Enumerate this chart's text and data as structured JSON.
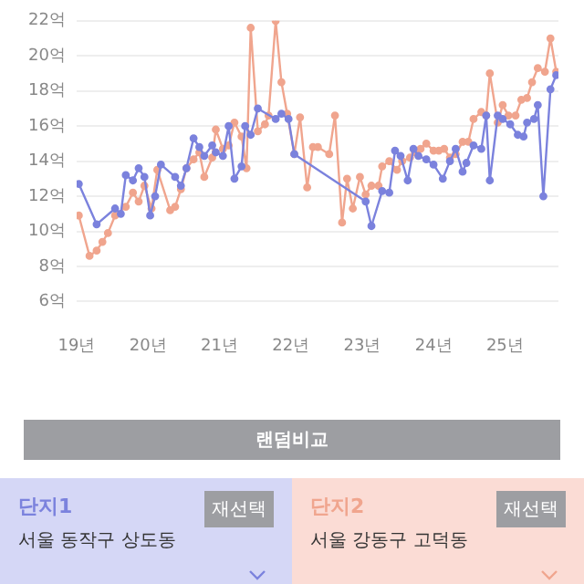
{
  "chart_data": {
    "type": "line",
    "marker": "circle",
    "grid": "y",
    "legend": "bottom",
    "xlim": [
      "2019-01-01",
      "2025-10-01"
    ],
    "ylim": [
      6,
      22
    ],
    "xticks": [
      {
        "value": "2019",
        "label": "19년"
      },
      {
        "value": "2020",
        "label": "20년"
      },
      {
        "value": "2021",
        "label": "21년"
      },
      {
        "value": "2022",
        "label": "22년"
      },
      {
        "value": "2023",
        "label": "23년"
      },
      {
        "value": "2024",
        "label": "24년"
      },
      {
        "value": "2025",
        "label": "25년"
      }
    ],
    "yticks": [
      {
        "value": 6,
        "label": "6억"
      },
      {
        "value": 8,
        "label": "8억"
      },
      {
        "value": 10,
        "label": "10억"
      },
      {
        "value": 12,
        "label": "12억"
      },
      {
        "value": 14,
        "label": "14억"
      },
      {
        "value": 16,
        "label": "16억"
      },
      {
        "value": 18,
        "label": "18억"
      },
      {
        "value": 20,
        "label": "20억"
      },
      {
        "value": 22,
        "label": "22억"
      }
    ],
    "annotations": [
      "랜덤비교",
      "서울 동작구 상도동",
      "재선택",
      "서울 강동구 고덕동",
      "재선택"
    ],
    "series": [
      {
        "name": "단지1",
        "color": "#7b82dd",
        "x": [
          "2019-01-12",
          "2019-04-12",
          "2019-07-15",
          "2019-08-14",
          "2019-09-09",
          "2019-10-15",
          "2019-11-14",
          "2019-12-13",
          "2020-01-12",
          "2020-02-07",
          "2020-03-06",
          "2020-05-18",
          "2020-06-17",
          "2020-07-15",
          "2020-08-21",
          "2020-09-20",
          "2020-10-15",
          "2020-11-25",
          "2020-12-13",
          "2021-01-19",
          "2021-02-18",
          "2021-03-17",
          "2021-04-23",
          "2021-05-11",
          "2021-06-09",
          "2021-07-15",
          "2021-10-15",
          "2021-11-14",
          "2021-12-20",
          "2022-01-19",
          "2023-01-19",
          "2023-02-18",
          "2023-04-12",
          "2023-05-18",
          "2023-06-17",
          "2023-07-15",
          "2023-08-21",
          "2023-09-20",
          "2023-10-15",
          "2023-11-25",
          "2024-01-01",
          "2024-02-18",
          "2024-03-24",
          "2024-04-23",
          "2024-05-28",
          "2024-06-17",
          "2024-07-23",
          "2024-09-02",
          "2024-09-27",
          "2024-10-15",
          "2024-11-25",
          "2024-12-20",
          "2025-01-28",
          "2025-03-06",
          "2025-04-05",
          "2025-04-23",
          "2025-05-28",
          "2025-06-17",
          "2025-07-15",
          "2025-08-21",
          "2025-09-20"
        ],
        "values": [
          12.7,
          10.4,
          11.3,
          11.0,
          13.2,
          12.9,
          13.6,
          13.1,
          10.9,
          12.0,
          13.8,
          13.1,
          12.6,
          13.6,
          15.3,
          14.8,
          14.3,
          14.9,
          14.5,
          14.3,
          16.0,
          13.0,
          13.7,
          16.0,
          15.5,
          17.0,
          16.4,
          16.7,
          16.4,
          14.4,
          11.7,
          10.3,
          12.3,
          12.2,
          14.6,
          14.3,
          12.9,
          14.7,
          14.3,
          14.1,
          13.8,
          13.0,
          14.0,
          14.7,
          13.4,
          13.9,
          14.9,
          14.7,
          16.6,
          12.9,
          16.6,
          16.4,
          16.1,
          15.5,
          15.4,
          16.2,
          16.4,
          17.2,
          12.0,
          18.1,
          18.9
        ]
      },
      {
        "name": "단지2",
        "color": "#f0a58e",
        "x": [
          "2019-01-12",
          "2019-03-06",
          "2019-04-12",
          "2019-05-11",
          "2019-06-09",
          "2019-07-15",
          "2019-09-09",
          "2019-10-15",
          "2019-11-14",
          "2019-12-13",
          "2020-01-19",
          "2020-02-18",
          "2020-04-23",
          "2020-05-18",
          "2020-06-17",
          "2020-07-15",
          "2020-08-21",
          "2020-09-20",
          "2020-10-15",
          "2020-11-25",
          "2020-12-13",
          "2021-01-19",
          "2021-02-18",
          "2021-03-17",
          "2021-04-23",
          "2021-05-18",
          "2021-06-09",
          "2021-07-15",
          "2021-08-21",
          "2021-09-09",
          "2021-10-15",
          "2021-11-14",
          "2021-12-13",
          "2022-01-19",
          "2022-02-18",
          "2022-03-24",
          "2022-04-23",
          "2022-05-18",
          "2022-07-15",
          "2022-08-14",
          "2022-09-20",
          "2022-10-15",
          "2022-11-14",
          "2022-12-20",
          "2023-01-19",
          "2023-02-18",
          "2023-03-24",
          "2023-04-12",
          "2023-05-18",
          "2023-06-27",
          "2023-07-23",
          "2023-09-02",
          "2023-09-27",
          "2023-10-26",
          "2023-11-25",
          "2024-01-01",
          "2024-01-28",
          "2024-02-25",
          "2024-03-24",
          "2024-04-23",
          "2024-05-28",
          "2024-06-27",
          "2024-07-23",
          "2024-09-02",
          "2024-09-27",
          "2024-10-15",
          "2024-11-25",
          "2024-12-20",
          "2025-01-19",
          "2025-02-25",
          "2025-03-24",
          "2025-04-23",
          "2025-05-18",
          "2025-06-17",
          "2025-07-23",
          "2025-08-21",
          "2025-09-20"
        ],
        "values": [
          10.9,
          8.6,
          8.9,
          9.4,
          9.9,
          10.9,
          11.4,
          12.2,
          11.7,
          12.6,
          11.3,
          13.5,
          11.2,
          11.4,
          12.4,
          13.6,
          14.1,
          14.5,
          13.1,
          14.2,
          15.8,
          14.7,
          14.9,
          16.2,
          15.4,
          13.6,
          21.6,
          15.7,
          16.1,
          16.6,
          22.0,
          18.5,
          16.7,
          14.4,
          16.5,
          12.5,
          14.8,
          14.8,
          14.4,
          16.6,
          10.5,
          13.0,
          11.3,
          13.1,
          12.1,
          12.6,
          12.6,
          13.7,
          14.0,
          13.5,
          14.0,
          14.2,
          14.5,
          14.7,
          15.0,
          14.6,
          14.6,
          14.7,
          14.2,
          14.4,
          15.1,
          15.1,
          16.4,
          16.8,
          16.6,
          19.0,
          16.2,
          17.2,
          16.6,
          16.6,
          17.5,
          17.6,
          18.5,
          19.3,
          19.1,
          21.0,
          19.1
        ]
      }
    ]
  }
}
